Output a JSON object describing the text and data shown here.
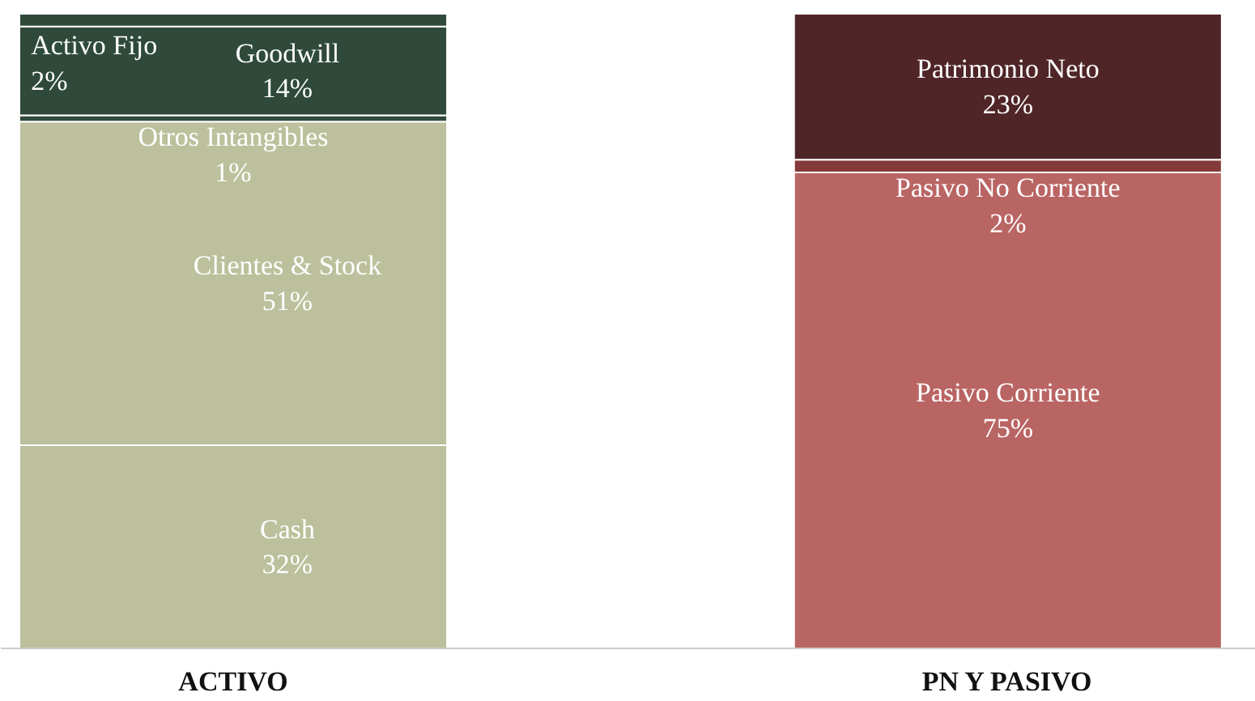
{
  "chart_data": {
    "type": "bar",
    "stacked": true,
    "categories": [
      "ACTIVO",
      "PN Y PASIVO"
    ],
    "series": [
      {
        "name": "Cash",
        "color": "#bcc09c",
        "values": [
          32,
          null
        ],
        "value_labels": [
          "32%",
          null
        ]
      },
      {
        "name": "Clientes & Stock",
        "color": "#bcc09c",
        "values": [
          51,
          null
        ],
        "value_labels": [
          "51%",
          null
        ]
      },
      {
        "name": "Otros Intangibles",
        "color": "#2f4a3b",
        "values": [
          1,
          null
        ],
        "value_labels": [
          "1%",
          null
        ]
      },
      {
        "name": "Goodwill",
        "color": "#2f4a3b",
        "values": [
          14,
          null
        ],
        "value_labels": [
          "14%",
          null
        ]
      },
      {
        "name": "Activo Fijo",
        "color": "#2f4a3b",
        "values": [
          2,
          null
        ],
        "value_labels": [
          "2%",
          null
        ]
      },
      {
        "name": "Pasivo Corriente",
        "color": "#b96564",
        "values": [
          null,
          75
        ],
        "value_labels": [
          null,
          "75%"
        ]
      },
      {
        "name": "Pasivo No Corriente",
        "color": "#843a3b",
        "values": [
          null,
          2
        ],
        "value_labels": [
          null,
          "2%"
        ]
      },
      {
        "name": "Patrimonio Neto",
        "color": "#4f2527",
        "values": [
          null,
          23
        ],
        "value_labels": [
          null,
          "23%"
        ]
      }
    ]
  }
}
